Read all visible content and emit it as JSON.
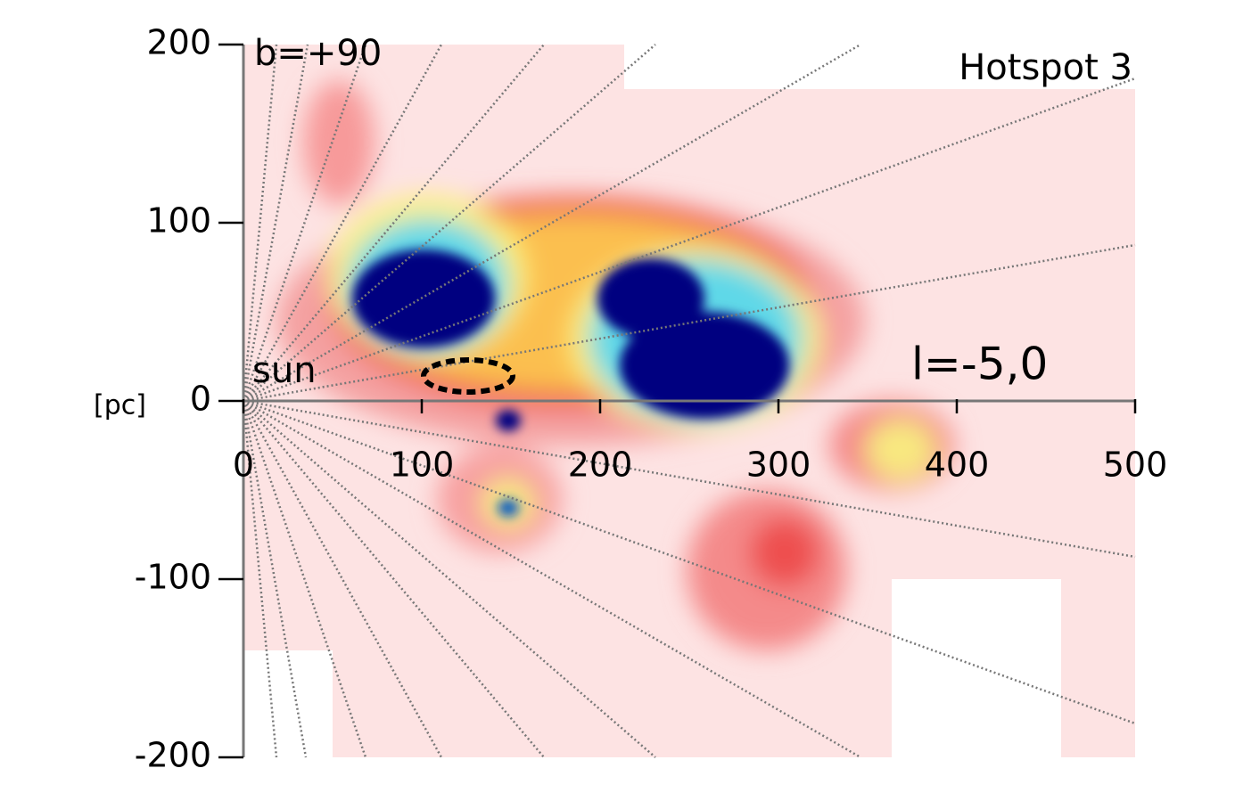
{
  "chart_data": {
    "type": "heatmap",
    "title": "Hotspot 3",
    "annotations": [
      "b=+90",
      "sun",
      "l=-5,0"
    ],
    "y_unit": "[pc]",
    "xlim": [
      0,
      500
    ],
    "ylim": [
      -200,
      200
    ],
    "xticks": [
      0,
      100,
      200,
      300,
      400,
      500
    ],
    "yticks": [
      -200,
      -100,
      0,
      100,
      200
    ]
  }
}
